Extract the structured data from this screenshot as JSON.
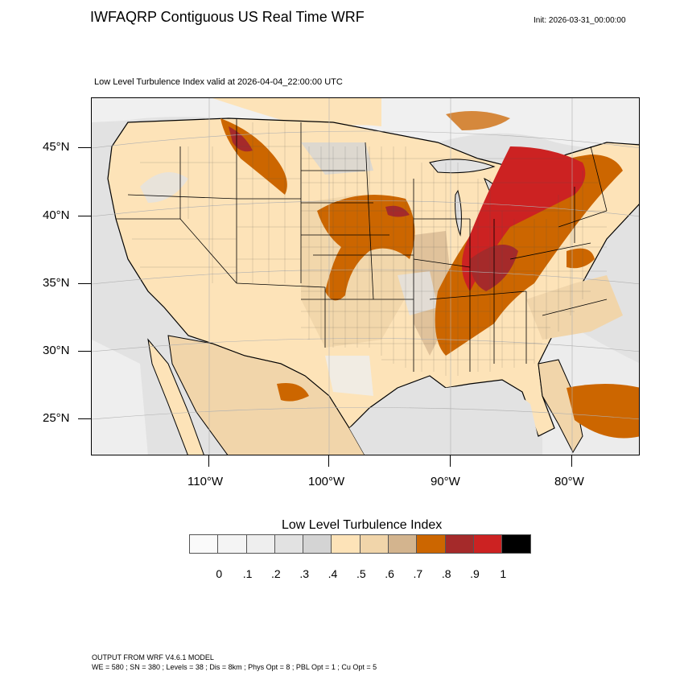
{
  "header": {
    "title": "IWFAQRP Contiguous US Real Time WRF",
    "init": "Init: 2026-03-31_00:00:00"
  },
  "map": {
    "subtitle": "Low Level Turbulence Index valid at 2026-04-04_22:00:00 UTC",
    "lat_labels": [
      "45°N",
      "40°N",
      "35°N",
      "30°N",
      "25°N"
    ],
    "lon_labels": [
      "110°W",
      "100°W",
      "90°W",
      "80°W"
    ],
    "colors": {
      "ocean": "#e2e2e2",
      "land_base": "#fde3b8",
      "outline": "#000000"
    }
  },
  "colorbar": {
    "title": "Low Level Turbulence Index",
    "colors": [
      "#fafafa",
      "#f4f4f4",
      "#eeeeee",
      "#e2e2e2",
      "#d4d4d4",
      "#fde3b8",
      "#f1d5aa",
      "#d3b48e",
      "#cc6600",
      "#a52a2a",
      "#cc2222",
      "#000000"
    ],
    "labels": [
      "0",
      ".1",
      ".2",
      ".3",
      ".4",
      ".5",
      ".6",
      ".7",
      ".8",
      ".9",
      "1"
    ]
  },
  "footer": {
    "line1": "OUTPUT FROM WRF V4.6.1 MODEL",
    "line2": "WE = 580 ; SN = 380 ; Levels = 38 ; Dis = 8km ; Phys Opt = 8 ; PBL Opt = 1 ; Cu Opt = 5"
  }
}
